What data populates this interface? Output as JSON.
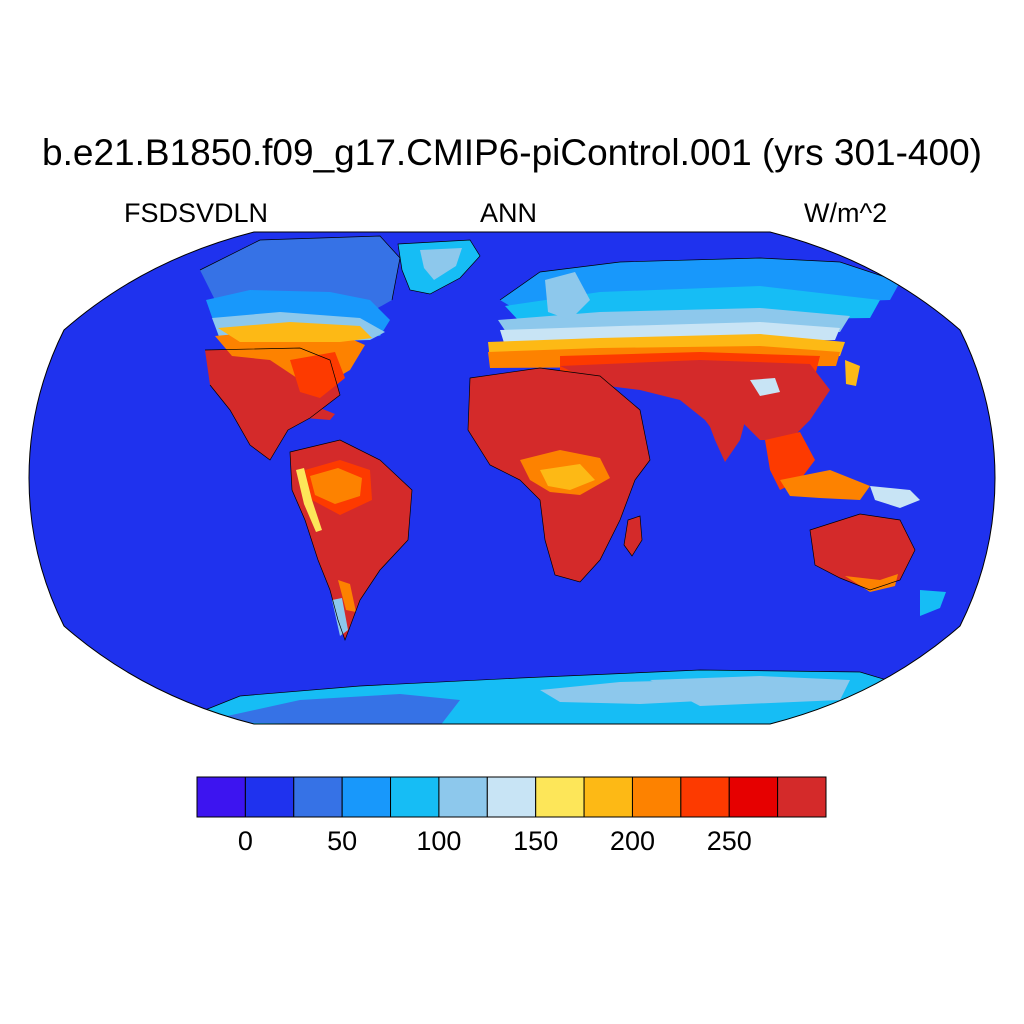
{
  "title": "b.e21.B1850.f09_g17.CMIP6-piControl.001 (yrs 301-400)",
  "variable": "FSDSVDLN",
  "season": "ANN",
  "units": "W/m^2",
  "colorbar": {
    "colors": [
      "#3d14f0",
      "#1f32ee",
      "#3672e6",
      "#1898fb",
      "#16bdf5",
      "#8dc8ec",
      "#c8e4f5",
      "#fde659",
      "#fdb915",
      "#fd8200",
      "#fd3a00",
      "#e60000",
      "#d42a2a"
    ],
    "labels": [
      "0",
      "50",
      "100",
      "150",
      "200",
      "250"
    ]
  },
  "map": {
    "projection": "Robinson",
    "ocean_color": "#1f32ee",
    "coastline_color": "#000000",
    "region_colors": {
      "subtropical_land": "#d42a2a",
      "transition_high": "#fd3a00",
      "transition_mid": "#fd8200",
      "transition_low": "#fdb915",
      "yellow_band": "#fde659",
      "light_band": "#c8e4f5",
      "pale_blue": "#8dc8ec",
      "cyan": "#16bdf5",
      "mid_blue": "#1898fb",
      "steel_blue": "#3672e6"
    }
  }
}
